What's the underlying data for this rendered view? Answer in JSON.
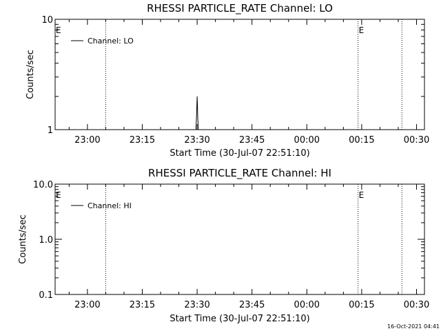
{
  "timestamp": "16-Oct-2021 04:41",
  "chart_data": [
    {
      "type": "line",
      "title": "RHESSI PARTICLE_RATE Channel: LO",
      "xlabel": "Start Time (30-Jul-07 22:51:10)",
      "ylabel": "Counts/sec",
      "yscale": "log",
      "xlim": [
        "22:51:10",
        "00:32:10"
      ],
      "ylim": [
        1,
        10
      ],
      "x_ticks": [
        "23:00",
        "23:15",
        "23:30",
        "23:45",
        "00:00",
        "00:15",
        "00:30"
      ],
      "y_ticks": [
        "1",
        "10"
      ],
      "legend": {
        "label": "Channel: LO",
        "placement": "top-left"
      },
      "vlines": [
        "23:05",
        "00:14",
        "00:26"
      ],
      "annotations": [
        {
          "text": "E",
          "time": "22:51:10"
        },
        {
          "text": "E",
          "time": "00:14"
        }
      ],
      "series": [
        {
          "name": "Channel: LO",
          "color": "#000000",
          "x": [
            "23:29:40",
            "23:29:50",
            "23:30:00",
            "23:30:05",
            "23:30:10",
            "23:30:20"
          ],
          "y": [
            1,
            1.3,
            2.0,
            1.7,
            1.3,
            1
          ]
        }
      ]
    },
    {
      "type": "line",
      "title": "RHESSI PARTICLE_RATE Channel: HI",
      "xlabel": "Start Time (30-Jul-07 22:51:10)",
      "ylabel": "Counts/sec",
      "yscale": "log",
      "xlim": [
        "22:51:10",
        "00:32:10"
      ],
      "ylim": [
        0.1,
        10
      ],
      "x_ticks": [
        "23:00",
        "23:15",
        "23:30",
        "23:45",
        "00:00",
        "00:15",
        "00:30"
      ],
      "y_ticks": [
        "0.1",
        "1.0",
        "10.0"
      ],
      "legend": {
        "label": "Channel: HI",
        "placement": "top-left"
      },
      "vlines": [
        "23:05",
        "00:14",
        "00:26"
      ],
      "annotations": [
        {
          "text": "E",
          "time": "22:51:10"
        },
        {
          "text": "E",
          "time": "00:14"
        }
      ],
      "series": [
        {
          "name": "Channel: HI",
          "color": "#000000",
          "x": [],
          "y": []
        }
      ]
    }
  ]
}
